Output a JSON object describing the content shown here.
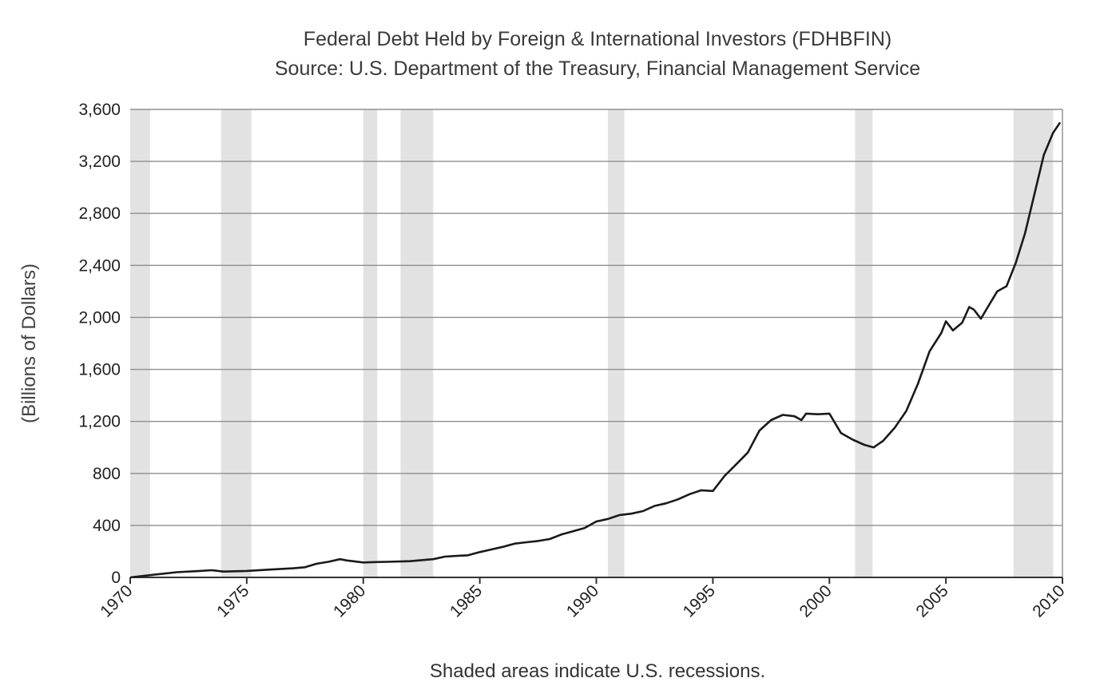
{
  "chart_data": {
    "type": "line",
    "title": "Federal Debt Held by Foreign & International Investors (FDHBFIN)",
    "subtitle": "Source: U.S. Department of the Treasury, Financial Management Service",
    "xlabel": "",
    "ylabel": "(Billions of Dollars)",
    "caption": "Shaded areas indicate U.S. recessions.",
    "xlim": [
      1970,
      2010
    ],
    "ylim": [
      0,
      3600
    ],
    "grid": true,
    "x_ticks": [
      1970,
      1975,
      1980,
      1985,
      1990,
      1995,
      2000,
      2005,
      2010
    ],
    "x_tick_labels": [
      "1970",
      "1975",
      "1980",
      "1985",
      "1990",
      "1995",
      "2000",
      "2005",
      "2010"
    ],
    "y_ticks": [
      0,
      400,
      800,
      1200,
      1600,
      2000,
      2400,
      2800,
      3200,
      3600
    ],
    "y_tick_labels": [
      "0",
      "400",
      "800",
      "1,200",
      "1,600",
      "2,000",
      "2,400",
      "2,800",
      "3,200",
      "3,600"
    ],
    "recessions": [
      [
        1970.0,
        1970.85
      ],
      [
        1973.9,
        1975.2
      ],
      [
        1980.0,
        1980.6
      ],
      [
        1981.6,
        1983.0
      ],
      [
        1990.5,
        1991.2
      ],
      [
        2001.1,
        2001.85
      ],
      [
        2007.9,
        2009.6
      ]
    ],
    "series": [
      {
        "name": "FDHBFIN",
        "x": [
          1970.0,
          1971.0,
          1972.0,
          1973.0,
          1973.5,
          1974.0,
          1975.0,
          1976.0,
          1977.0,
          1977.5,
          1978.0,
          1978.5,
          1979.0,
          1979.3,
          1980.0,
          1980.5,
          1981.0,
          1982.0,
          1983.0,
          1983.5,
          1984.0,
          1984.5,
          1985.0,
          1985.5,
          1986.0,
          1986.5,
          1987.0,
          1987.5,
          1988.0,
          1988.5,
          1989.0,
          1989.5,
          1990.0,
          1990.5,
          1991.0,
          1991.5,
          1992.0,
          1992.5,
          1993.0,
          1993.5,
          1994.0,
          1994.5,
          1995.0,
          1995.5,
          1996.0,
          1996.5,
          1997.0,
          1997.5,
          1998.0,
          1998.5,
          1998.8,
          1999.0,
          1999.5,
          2000.0,
          2000.5,
          2001.0,
          2001.5,
          2001.9,
          2002.3,
          2002.8,
          2003.3,
          2003.8,
          2004.3,
          2004.8,
          2005.0,
          2005.3,
          2005.7,
          2006.0,
          2006.2,
          2006.5,
          2006.8,
          2007.2,
          2007.6,
          2008.0,
          2008.4,
          2008.8,
          2009.2,
          2009.6,
          2009.9
        ],
        "values": [
          0,
          20,
          40,
          50,
          55,
          45,
          50,
          60,
          70,
          78,
          105,
          120,
          140,
          130,
          115,
          118,
          120,
          125,
          140,
          160,
          165,
          170,
          195,
          215,
          235,
          260,
          270,
          280,
          295,
          330,
          355,
          380,
          430,
          450,
          480,
          490,
          510,
          550,
          570,
          600,
          640,
          670,
          665,
          780,
          870,
          960,
          1130,
          1210,
          1250,
          1240,
          1210,
          1260,
          1255,
          1260,
          1110,
          1060,
          1020,
          1000,
          1050,
          1150,
          1280,
          1490,
          1740,
          1880,
          1970,
          1900,
          1960,
          2080,
          2060,
          1990,
          2080,
          2200,
          2240,
          2420,
          2650,
          2950,
          3250,
          3420,
          3500
        ]
      }
    ]
  }
}
